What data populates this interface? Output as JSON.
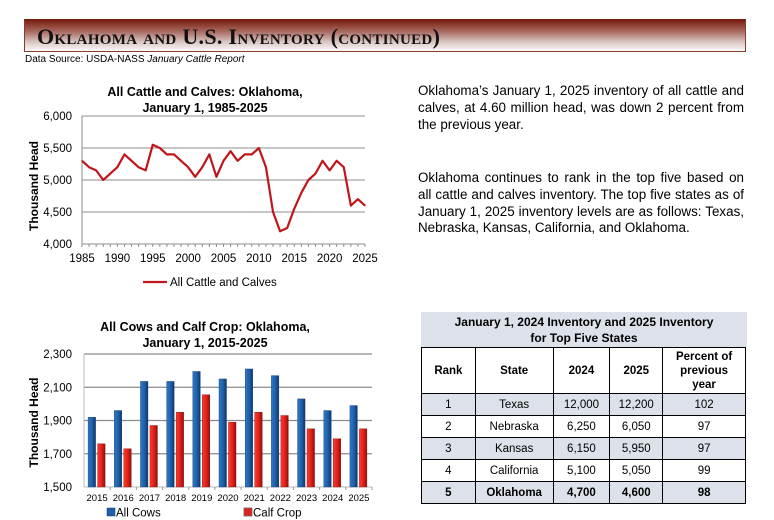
{
  "header": {
    "title": "Oklahoma and U.S. Inventory (continued)",
    "source_prefix": "Data Source: USDA-NASS ",
    "source_report": "January Cattle Report"
  },
  "text": {
    "paragraph1": "Oklahoma’s January 1, 2025 inventory of all cattle and calves, at 4.60 million head, was down 2 percent from the previous year.",
    "paragraph2": "Oklahoma continues to rank in the top five based on all cattle and calves inventory. The top five states as of January 1, 2025 inventory levels are as follows: Texas, Nebraska, Kansas, California, and Oklahoma."
  },
  "colors": {
    "line": "#c0161b",
    "cows": "#1f5fa8",
    "calf": "#e0201a",
    "grid": "#8c8c8c",
    "table_shade": "#dde2ea"
  },
  "chart_data": [
    {
      "type": "line",
      "title_line1": "All Cattle and Calves: Oklahoma,",
      "title_line2": "January 1, 1985-2025",
      "xlabel": "",
      "ylabel": "Thousand Head",
      "ylim": [
        4000,
        6000
      ],
      "yticks": [
        4000,
        4500,
        5000,
        5500,
        6000
      ],
      "ytick_labels": [
        "4,000",
        "4,500",
        "5,000",
        "5,500",
        "6,000"
      ],
      "xlim": [
        1985,
        2025
      ],
      "xticks": [
        1985,
        1990,
        1995,
        2000,
        2005,
        2010,
        2015,
        2020,
        2025
      ],
      "xtick_labels": [
        "1985",
        "1990",
        "1995",
        "2000",
        "2005",
        "2010",
        "2015",
        "2020",
        "2025"
      ],
      "grid": true,
      "legend_position": "bottom",
      "series": [
        {
          "name": "All Cattle and Calves",
          "x": [
            1985,
            1986,
            1987,
            1988,
            1989,
            1990,
            1991,
            1992,
            1993,
            1994,
            1995,
            1996,
            1997,
            1998,
            1999,
            2000,
            2001,
            2002,
            2003,
            2004,
            2005,
            2006,
            2007,
            2008,
            2009,
            2010,
            2011,
            2012,
            2013,
            2014,
            2015,
            2016,
            2017,
            2018,
            2019,
            2020,
            2021,
            2022,
            2023,
            2024,
            2025
          ],
          "values": [
            5300,
            5200,
            5150,
            5000,
            5100,
            5200,
            5400,
            5300,
            5200,
            5150,
            5550,
            5500,
            5400,
            5400,
            5300,
            5200,
            5050,
            5200,
            5400,
            5050,
            5300,
            5450,
            5300,
            5400,
            5400,
            5500,
            5200,
            4500,
            4200,
            4250,
            4550,
            4800,
            5000,
            5100,
            5300,
            5150,
            5300,
            5200,
            4600,
            4700,
            4600
          ]
        }
      ]
    },
    {
      "type": "bar",
      "title_line1": "All Cows and Calf Crop: Oklahoma,",
      "title_line2": "January 1, 2015-2025",
      "xlabel": "",
      "ylabel": "Thousand Head",
      "ylim": [
        1500,
        2300
      ],
      "yticks": [
        1500,
        1700,
        1900,
        2100,
        2300
      ],
      "ytick_labels": [
        "1,500",
        "1,700",
        "1,900",
        "2,100",
        "2,300"
      ],
      "grid": true,
      "legend_position": "bottom",
      "categories": [
        "2015",
        "2016",
        "2017",
        "2018",
        "2019",
        "2020",
        "2021",
        "2022",
        "2023",
        "2024",
        "2025"
      ],
      "series": [
        {
          "name": "All Cows",
          "values": [
            1920,
            1960,
            2135,
            2135,
            2195,
            2150,
            2210,
            2170,
            2030,
            1960,
            1990
          ]
        },
        {
          "name": "Calf Crop",
          "values": [
            1760,
            1730,
            1870,
            1950,
            2055,
            1890,
            1950,
            1930,
            1850,
            1790,
            1850
          ]
        }
      ]
    },
    {
      "type": "table",
      "title_line1": "January 1, 2024 Inventory and 2025 Inventory",
      "title_line2": "for Top Five States",
      "columns": [
        "Rank",
        "State",
        "2024",
        "2025",
        "Percent of previous year"
      ],
      "rows": [
        [
          "1",
          "Texas",
          "12,000",
          "12,200",
          "102"
        ],
        [
          "2",
          "Nebraska",
          "6,250",
          "6,050",
          "97"
        ],
        [
          "3",
          "Kansas",
          "6,150",
          "5,950",
          "97"
        ],
        [
          "4",
          "California",
          "5,100",
          "5,050",
          "99"
        ],
        [
          "5",
          "Oklahoma",
          "4,700",
          "4,600",
          "98"
        ]
      ]
    }
  ]
}
